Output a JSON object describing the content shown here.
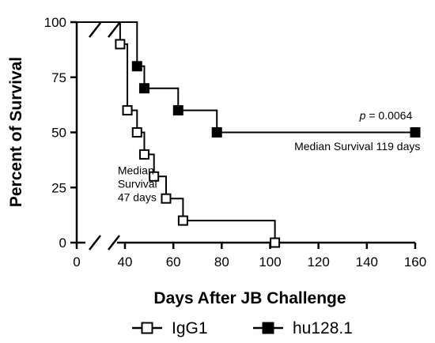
{
  "chart_data": {
    "type": "line",
    "step": true,
    "xlabel": "Days After JB Challenge",
    "ylabel": "Percent of Survival",
    "xlim": [
      0,
      160
    ],
    "ylim": [
      0,
      100
    ],
    "axis_break": true,
    "x_ticks": [
      0,
      40,
      60,
      80,
      100,
      120,
      140,
      160
    ],
    "x_tick_labels": [
      "0",
      "40",
      "60",
      "80",
      "100",
      "120",
      "140",
      "160"
    ],
    "y_ticks": [
      0,
      25,
      50,
      75,
      100
    ],
    "y_tick_labels": [
      "0",
      "25",
      "50",
      "75",
      "100"
    ],
    "grid": false,
    "legend_position": "bottom",
    "series": [
      {
        "name": "IgG1",
        "color": "#000000",
        "marker": "open-square",
        "steps": [
          [
            0,
            100
          ],
          [
            38,
            90
          ],
          [
            41,
            60
          ],
          [
            45,
            50
          ],
          [
            48,
            40
          ],
          [
            52,
            30
          ],
          [
            57,
            20
          ],
          [
            64,
            10
          ],
          [
            102,
            0
          ]
        ],
        "markers": [
          [
            38,
            90
          ],
          [
            41,
            60
          ],
          [
            45,
            50
          ],
          [
            48,
            40
          ],
          [
            52,
            30
          ],
          [
            57,
            20
          ],
          [
            64,
            10
          ],
          [
            102,
            0
          ]
        ]
      },
      {
        "name": "hu128.1",
        "color": "#000000",
        "marker": "filled-square",
        "steps": [
          [
            0,
            100
          ],
          [
            45,
            80
          ],
          [
            48,
            70
          ],
          [
            62,
            60
          ],
          [
            78,
            50
          ],
          [
            160,
            50
          ]
        ],
        "markers": [
          [
            45,
            80
          ],
          [
            48,
            70
          ],
          [
            62,
            60
          ],
          [
            78,
            50
          ],
          [
            160,
            50
          ]
        ]
      }
    ],
    "annotations": [
      {
        "text_parts": [
          "p",
          " = 0.0064"
        ],
        "italic_first": true,
        "x": 137,
        "y": 56
      },
      {
        "lines": [
          "Median Survival 119 days"
        ],
        "x": 110,
        "y": 42
      },
      {
        "lines": [
          "Median",
          "Survival",
          "47 days"
        ],
        "x": 37,
        "y": 31
      }
    ]
  }
}
